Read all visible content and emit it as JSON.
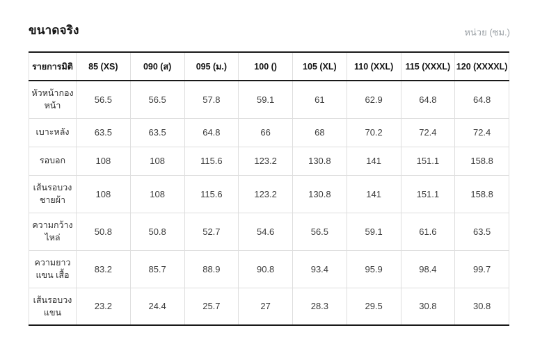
{
  "page": {
    "title": "ขนาดจริง",
    "unit_label": "หน่วย (ซม.)"
  },
  "colors": {
    "strong_border": "#191919",
    "light_border": "#dedede",
    "title_text": "#111111",
    "unit_text": "#9aa0a5",
    "cell_text": "#3c3c3c"
  },
  "table": {
    "headers": [
      "รายการมิติ",
      "85 (XS)",
      "090 (ส)",
      "095 (ม.)",
      "100 ()",
      "105 (XL)",
      "110 (XXL)",
      "115 (XXXL)",
      "120 (XXXXL)"
    ],
    "rows": [
      {
        "label": "หัวหน้ากอง หน้า",
        "values": [
          "56.5",
          "56.5",
          "57.8",
          "59.1",
          "61",
          "62.9",
          "64.8",
          "64.8"
        ]
      },
      {
        "label": "เบาะหลัง",
        "values": [
          "63.5",
          "63.5",
          "64.8",
          "66",
          "68",
          "70.2",
          "72.4",
          "72.4"
        ]
      },
      {
        "label": "รอบอก",
        "values": [
          "108",
          "108",
          "115.6",
          "123.2",
          "130.8",
          "141",
          "151.1",
          "158.8"
        ]
      },
      {
        "label": "เส้นรอบวง ชายผ้า",
        "values": [
          "108",
          "108",
          "115.6",
          "123.2",
          "130.8",
          "141",
          "151.1",
          "158.8"
        ]
      },
      {
        "label": "ความกว้าง ไหล่",
        "values": [
          "50.8",
          "50.8",
          "52.7",
          "54.6",
          "56.5",
          "59.1",
          "61.6",
          "63.5"
        ]
      },
      {
        "label": "ความยาวแขน เสื้อ",
        "values": [
          "83.2",
          "85.7",
          "88.9",
          "90.8",
          "93.4",
          "95.9",
          "98.4",
          "99.7"
        ]
      },
      {
        "label": "เส้นรอบวง แขน",
        "values": [
          "23.2",
          "24.4",
          "25.7",
          "27",
          "28.3",
          "29.5",
          "30.8",
          "30.8"
        ]
      }
    ]
  }
}
